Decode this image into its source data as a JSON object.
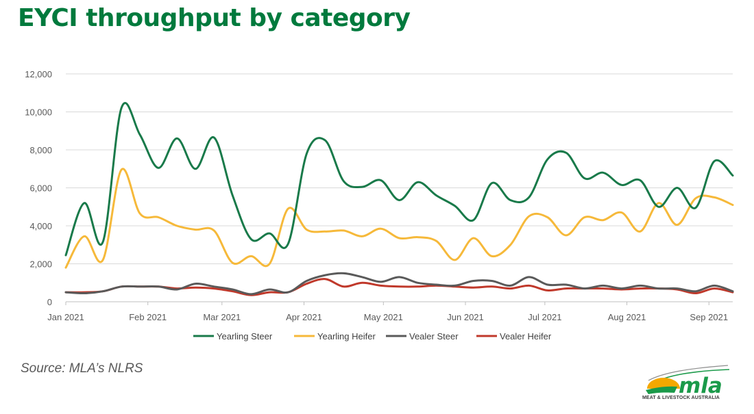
{
  "title": "EYCI throughput by category",
  "source": "Source: MLA’s NLRS",
  "logo": {
    "wordmark": "mla",
    "tagline": "MEAT & LIVESTOCK AUSTRALIA",
    "colors": {
      "green": "#1b9a4a",
      "sun": "#f5a800",
      "grey": "#8c8c8c"
    }
  },
  "chart_data": {
    "type": "line",
    "title": "",
    "xlabel": "",
    "ylabel": "",
    "ylim": [
      0,
      12000
    ],
    "yticks": [
      0,
      2000,
      4000,
      6000,
      8000,
      10000,
      12000
    ],
    "ytick_labels": [
      "0",
      "2,000",
      "4,000",
      "6,000",
      "8,000",
      "10,000",
      "12,000"
    ],
    "xlim": [
      "2021-01-01",
      "2021-09-10"
    ],
    "xticks": [
      "2021-01-01",
      "2021-02-01",
      "2021-03-01",
      "2021-04-01",
      "2021-05-01",
      "2021-06-01",
      "2021-07-01",
      "2021-08-01",
      "2021-09-01"
    ],
    "xtick_labels": [
      "Jan 2021",
      "Feb 2021",
      "Mar 2021",
      "Apr 2021",
      "May 2021",
      "Jun 2021",
      "Jul 2021",
      "Aug 2021",
      "Sep 2021"
    ],
    "grid": true,
    "legend_position": "bottom",
    "x": [
      "2021-01-01",
      "2021-01-08",
      "2021-01-15",
      "2021-01-22",
      "2021-01-29",
      "2021-02-05",
      "2021-02-12",
      "2021-02-19",
      "2021-02-26",
      "2021-03-05",
      "2021-03-12",
      "2021-03-19",
      "2021-03-26",
      "2021-04-02",
      "2021-04-09",
      "2021-04-16",
      "2021-04-23",
      "2021-04-30",
      "2021-05-07",
      "2021-05-14",
      "2021-05-21",
      "2021-05-28",
      "2021-06-04",
      "2021-06-11",
      "2021-06-18",
      "2021-06-25",
      "2021-07-02",
      "2021-07-09",
      "2021-07-16",
      "2021-07-23",
      "2021-07-30",
      "2021-08-06",
      "2021-08-13",
      "2021-08-20",
      "2021-08-27",
      "2021-09-03",
      "2021-09-10"
    ],
    "series": [
      {
        "name": "Yearling Steer",
        "color": "#197a4a",
        "values": [
          2450,
          5200,
          3150,
          10200,
          8800,
          7050,
          8600,
          7000,
          8650,
          5600,
          3300,
          3600,
          3050,
          7800,
          8500,
          6350,
          6050,
          6400,
          5350,
          6300,
          5600,
          5050,
          4300,
          6250,
          5350,
          5500,
          7500,
          7850,
          6500,
          6800,
          6150,
          6400,
          5000,
          6000,
          4950,
          7400,
          6650
        ]
      },
      {
        "name": "Yearling Heifer",
        "color": "#f6b93a",
        "values": [
          1800,
          3450,
          2200,
          6950,
          4650,
          4450,
          4000,
          3800,
          3750,
          2050,
          2400,
          2000,
          4900,
          3800,
          3700,
          3750,
          3450,
          3850,
          3350,
          3400,
          3200,
          2200,
          3350,
          2400,
          3000,
          4500,
          4450,
          3500,
          4450,
          4300,
          4700,
          3700,
          5200,
          4050,
          5450,
          5500,
          5100
        ]
      },
      {
        "name": "Vealer Steer",
        "color": "#5a5a5a",
        "values": [
          500,
          450,
          550,
          800,
          800,
          800,
          650,
          950,
          800,
          650,
          400,
          650,
          500,
          1100,
          1400,
          1500,
          1300,
          1050,
          1300,
          1000,
          900,
          850,
          1100,
          1100,
          850,
          1300,
          900,
          900,
          700,
          850,
          700,
          850,
          700,
          700,
          550,
          850,
          550
        ]
      },
      {
        "name": "Vealer Heifer",
        "color": "#c0392b",
        "values": [
          500,
          500,
          550,
          800,
          800,
          800,
          700,
          750,
          700,
          550,
          350,
          500,
          500,
          950,
          1200,
          800,
          1000,
          850,
          800,
          800,
          850,
          800,
          750,
          800,
          700,
          850,
          600,
          700,
          700,
          700,
          650,
          700,
          700,
          650,
          450,
          700,
          500
        ]
      }
    ]
  }
}
